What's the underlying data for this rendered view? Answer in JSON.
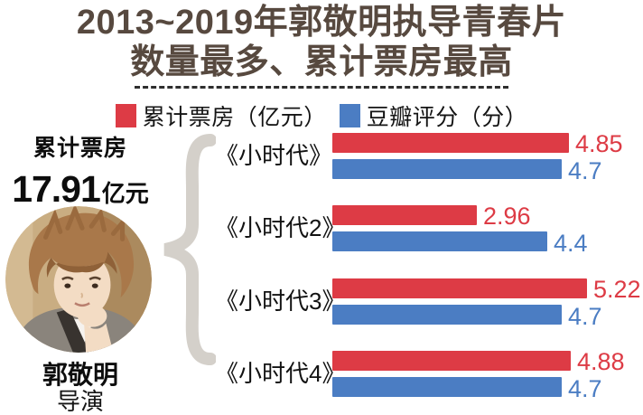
{
  "title": {
    "line1": "2013~2019年郭敬明执导青春片",
    "line2": "数量最多、累计票房最高"
  },
  "legend": [
    {
      "label": "累计票房（亿元）",
      "color": "#dd3b45",
      "swatch": "red-square-icon"
    },
    {
      "label": "豆瓣评分（分）",
      "color": "#4b7dc3",
      "swatch": "blue-square-icon"
    }
  ],
  "director_panel": {
    "total_label": "累计票房",
    "total_value": "17.91",
    "total_unit": "亿元",
    "name": "郭敬明",
    "role": "导演",
    "photo": "circular-portrait-of-director"
  },
  "chart_data": {
    "type": "bar",
    "orientation": "horizontal",
    "title": "2013~2019年郭敬明执导青春片数量最多、累计票房最高",
    "categories": [
      "《小时代》",
      "《小时代2》",
      "《小时代3》",
      "《小时代4》"
    ],
    "series": [
      {
        "name": "累计票房（亿元）",
        "color": "#dd3b45",
        "values": [
          4.85,
          2.96,
          5.22,
          4.88
        ]
      },
      {
        "name": "豆瓣评分（分）",
        "color": "#4b7dc3",
        "values": [
          4.7,
          4.4,
          4.7,
          4.7
        ]
      }
    ],
    "xlim": [
      0,
      5.5
    ],
    "value_labels": true,
    "grid": false,
    "legend_position": "top",
    "xlabel": "",
    "ylabel": ""
  },
  "colors": {
    "accent_red": "#dd3b45",
    "accent_blue": "#4b7dc3",
    "title_text": "#57493f",
    "brace": "#d4d0ca"
  }
}
